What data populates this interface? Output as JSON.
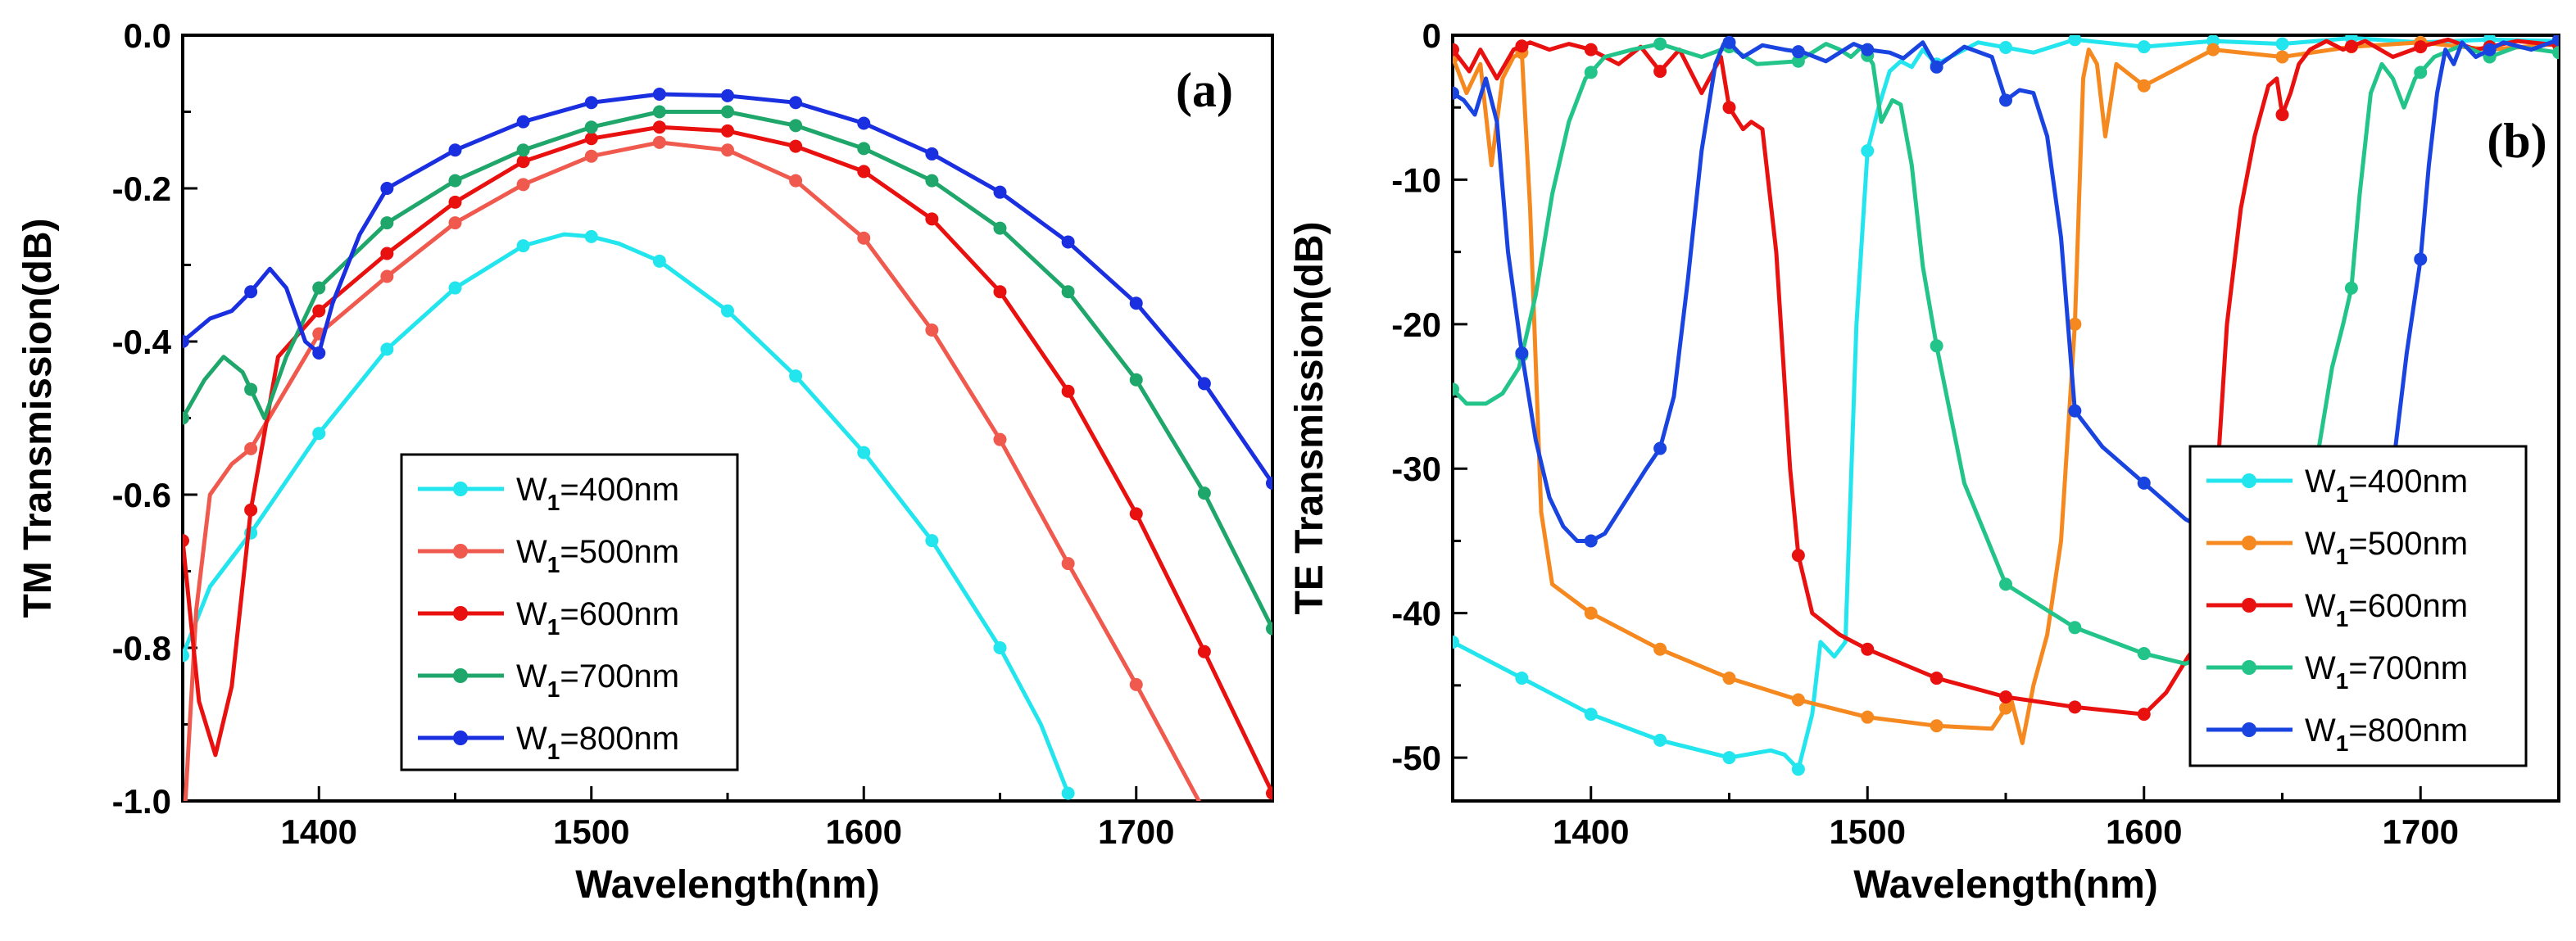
{
  "chart_data": [
    {
      "type": "line",
      "panel_label": "(a)",
      "xlabel": "Wavelength(nm)",
      "ylabel": "TM Transmission(dB)",
      "xlim": [
        1350,
        1750
      ],
      "ylim": [
        -1.0,
        0.0
      ],
      "xticks": [
        1400,
        1500,
        1600,
        1700
      ],
      "yticks": [
        -1.0,
        -0.8,
        -0.6,
        -0.4,
        -0.2,
        0.0
      ],
      "ytick_labels": [
        "-1.0",
        "-0.8",
        "-0.6",
        "-0.4",
        "-0.2",
        "0.0"
      ],
      "legend_position": "bottom-center",
      "series": [
        {
          "name": "W1=400nm",
          "label_main": "W",
          "label_sub": "1",
          "label_rest": "=400nm",
          "color": "#22e5ee",
          "x": [
            1350,
            1360,
            1375,
            1400,
            1425,
            1450,
            1475,
            1490,
            1500,
            1510,
            1525,
            1550,
            1575,
            1600,
            1625,
            1650,
            1665,
            1675
          ],
          "y": [
            -0.81,
            -0.72,
            -0.65,
            -0.52,
            -0.41,
            -0.33,
            -0.275,
            -0.26,
            -0.263,
            -0.272,
            -0.295,
            -0.36,
            -0.445,
            -0.545,
            -0.66,
            -0.8,
            -0.9,
            -0.99
          ]
        },
        {
          "name": "W1=500nm",
          "label_main": "W",
          "label_sub": "1",
          "label_rest": "=500nm",
          "color": "#f05a4e",
          "x": [
            1351,
            1355,
            1360,
            1368,
            1375,
            1390,
            1400,
            1425,
            1450,
            1475,
            1500,
            1525,
            1550,
            1575,
            1600,
            1625,
            1650,
            1675,
            1700,
            1723
          ],
          "y": [
            -1.0,
            -0.75,
            -0.6,
            -0.56,
            -0.54,
            -0.45,
            -0.39,
            -0.315,
            -0.245,
            -0.195,
            -0.158,
            -0.14,
            -0.15,
            -0.19,
            -0.265,
            -0.385,
            -0.528,
            -0.69,
            -0.848,
            -1.0
          ]
        },
        {
          "name": "W1=600nm",
          "label_main": "W",
          "label_sub": "1",
          "label_rest": "=600nm",
          "color": "#e8110f",
          "x": [
            1350,
            1356,
            1362,
            1368,
            1375,
            1385,
            1400,
            1425,
            1450,
            1475,
            1500,
            1525,
            1550,
            1575,
            1600,
            1625,
            1650,
            1675,
            1700,
            1725,
            1750
          ],
          "y": [
            -0.66,
            -0.87,
            -0.94,
            -0.85,
            -0.62,
            -0.42,
            -0.36,
            -0.285,
            -0.218,
            -0.165,
            -0.135,
            -0.12,
            -0.125,
            -0.145,
            -0.178,
            -0.24,
            -0.335,
            -0.465,
            -0.625,
            -0.805,
            -0.99
          ]
        },
        {
          "name": "W1=700nm",
          "label_main": "W",
          "label_sub": "1",
          "label_rest": "=700nm",
          "color": "#1fa66a",
          "x": [
            1350,
            1358,
            1365,
            1372,
            1380,
            1388,
            1400,
            1425,
            1450,
            1475,
            1500,
            1525,
            1550,
            1575,
            1600,
            1625,
            1650,
            1675,
            1700,
            1725,
            1750
          ],
          "y": [
            -0.5,
            -0.45,
            -0.42,
            -0.44,
            -0.5,
            -0.42,
            -0.33,
            -0.245,
            -0.19,
            -0.15,
            -0.12,
            -0.1,
            -0.1,
            -0.118,
            -0.148,
            -0.19,
            -0.252,
            -0.335,
            -0.45,
            -0.598,
            -0.775
          ]
        },
        {
          "name": "W1=800nm",
          "label_main": "W",
          "label_sub": "1",
          "label_rest": "=800nm",
          "color": "#1a2fe0",
          "x": [
            1350,
            1360,
            1368,
            1375,
            1382,
            1388,
            1395,
            1400,
            1405,
            1415,
            1425,
            1450,
            1475,
            1500,
            1525,
            1550,
            1575,
            1600,
            1625,
            1650,
            1675,
            1700,
            1725,
            1750
          ],
          "y": [
            -0.4,
            -0.37,
            -0.36,
            -0.335,
            -0.305,
            -0.33,
            -0.4,
            -0.415,
            -0.35,
            -0.26,
            -0.2,
            -0.15,
            -0.113,
            -0.088,
            -0.077,
            -0.079,
            -0.088,
            -0.115,
            -0.155,
            -0.205,
            -0.27,
            -0.35,
            -0.455,
            -0.585
          ]
        }
      ]
    },
    {
      "type": "line",
      "panel_label": "(b)",
      "xlabel": "Wavelength(nm)",
      "ylabel": "TE Transmission(dB)",
      "xlim": [
        1350,
        1750
      ],
      "ylim": [
        -53,
        0
      ],
      "xticks": [
        1400,
        1500,
        1600,
        1700
      ],
      "yticks": [
        -50,
        -40,
        -30,
        -20,
        -10,
        0
      ],
      "ytick_labels": [
        "-50",
        "-40",
        "-30",
        "-20",
        "-10",
        "0"
      ],
      "legend_position": "bottom-right",
      "series": [
        {
          "name": "W1=400nm",
          "label_main": "W",
          "label_sub": "1",
          "label_rest": "=400nm",
          "color": "#22e5ee",
          "x": [
            1350,
            1375,
            1400,
            1425,
            1450,
            1465,
            1470,
            1475,
            1480,
            1483,
            1488,
            1492,
            1496,
            1500,
            1504,
            1508,
            1512,
            1516,
            1520,
            1525,
            1540,
            1560,
            1575,
            1600,
            1625,
            1650,
            1675,
            1700,
            1725,
            1750
          ],
          "y": [
            -42,
            -44.5,
            -47,
            -48.8,
            -50,
            -49.5,
            -49.8,
            -50.8,
            -47,
            -42,
            -43,
            -42,
            -20,
            -8,
            -5,
            -2.5,
            -1.8,
            -2.2,
            -1,
            -2,
            -0.5,
            -1.2,
            -0.3,
            -0.8,
            -0.4,
            -0.6,
            -0.2,
            -0.5,
            -0.3,
            -0.4
          ]
        },
        {
          "name": "W1=500nm",
          "label_main": "W",
          "label_sub": "1",
          "label_rest": "=500nm",
          "color": "#f5881f",
          "x": [
            1350,
            1355,
            1360,
            1364,
            1368,
            1372,
            1375,
            1378,
            1382,
            1386,
            1400,
            1425,
            1450,
            1475,
            1500,
            1525,
            1545,
            1552,
            1556,
            1560,
            1565,
            1570,
            1575,
            1578,
            1580,
            1583,
            1586,
            1590,
            1600,
            1625,
            1650,
            1675,
            1700,
            1725,
            1750
          ],
          "y": [
            -1.5,
            -4,
            -2,
            -9,
            -3,
            -1.5,
            -1.2,
            -12,
            -33,
            -38,
            -40,
            -42.5,
            -44.5,
            -46,
            -47.2,
            -47.8,
            -48,
            -46,
            -49,
            -45,
            -41.5,
            -35,
            -20,
            -3,
            -1,
            -2,
            -7,
            -2,
            -3.5,
            -1,
            -1.5,
            -0.8,
            -0.5,
            -1,
            -0.6
          ]
        },
        {
          "name": "W1=600nm",
          "label_main": "W",
          "label_sub": "1",
          "label_rest": "=600nm",
          "color": "#e8110f",
          "x": [
            1350,
            1356,
            1360,
            1366,
            1372,
            1378,
            1385,
            1392,
            1400,
            1410,
            1418,
            1425,
            1432,
            1440,
            1447,
            1450,
            1455,
            1458,
            1462,
            1467,
            1472,
            1475,
            1480,
            1490,
            1500,
            1525,
            1550,
            1575,
            1600,
            1608,
            1616,
            1620,
            1625,
            1627,
            1630,
            1635,
            1640,
            1645,
            1648,
            1650,
            1653,
            1656,
            1660,
            1666,
            1672,
            1680,
            1690,
            1700,
            1710,
            1720,
            1735,
            1750
          ],
          "y": [
            -1,
            -2.5,
            -1,
            -3,
            -1,
            -0.5,
            -1,
            -0.6,
            -1,
            -2,
            -0.8,
            -2.5,
            -1,
            -4,
            -1.5,
            -5,
            -6.5,
            -6,
            -6.5,
            -15,
            -30,
            -36,
            -40,
            -41.5,
            -42.5,
            -44.5,
            -45.8,
            -46.5,
            -47,
            -45.5,
            -43,
            -42,
            -40,
            -29,
            -20,
            -12,
            -7,
            -3.5,
            -3,
            -5.5,
            -4,
            -2,
            -1,
            -0.4,
            -1,
            -0.4,
            -1.5,
            -0.8,
            -0.3,
            -1,
            -0.4,
            -0.7
          ]
        },
        {
          "name": "W1=700nm",
          "label_main": "W",
          "label_sub": "1",
          "label_rest": "=700nm",
          "color": "#22c48a",
          "x": [
            1350,
            1355,
            1362,
            1368,
            1374,
            1380,
            1386,
            1392,
            1398,
            1405,
            1415,
            1425,
            1440,
            1450,
            1460,
            1475,
            1485,
            1490,
            1494,
            1498,
            1502,
            1505,
            1509,
            1512,
            1516,
            1520,
            1525,
            1535,
            1550,
            1575,
            1600,
            1615,
            1650,
            1662,
            1668,
            1672,
            1675,
            1678,
            1682,
            1686,
            1690,
            1694,
            1698,
            1705,
            1715,
            1725,
            1735,
            1750
          ],
          "y": [
            -24.5,
            -25.5,
            -25.5,
            -24.8,
            -23,
            -18,
            -11,
            -6,
            -3,
            -1.5,
            -1,
            -0.6,
            -1.5,
            -0.8,
            -2,
            -1.8,
            -0.6,
            -1,
            -1.5,
            -0.8,
            -2,
            -6,
            -4.5,
            -4.8,
            -9,
            -16,
            -21.5,
            -31,
            -38,
            -41,
            -42.8,
            -43.5,
            -41,
            -30,
            -23,
            -20,
            -17.5,
            -11,
            -4,
            -2,
            -3,
            -5,
            -3,
            -1.5,
            -0.7,
            -1.5,
            -0.8,
            -1.2
          ]
        },
        {
          "name": "W1=800nm",
          "label_main": "W",
          "label_sub": "1",
          "label_rest": "=800nm",
          "color": "#1a44e0",
          "x": [
            1350,
            1354,
            1358,
            1362,
            1366,
            1370,
            1375,
            1380,
            1385,
            1390,
            1395,
            1400,
            1405,
            1410,
            1415,
            1420,
            1425,
            1430,
            1435,
            1440,
            1445,
            1448,
            1450,
            1455,
            1462,
            1470,
            1477,
            1485,
            1495,
            1500,
            1508,
            1513,
            1520,
            1525,
            1535,
            1545,
            1550,
            1555,
            1560,
            1565,
            1570,
            1575,
            1585,
            1600,
            1615,
            1620,
            1690,
            1695,
            1700,
            1703,
            1706,
            1709,
            1712,
            1715,
            1720,
            1730,
            1740,
            1750
          ],
          "y": [
            -4,
            -4.5,
            -5.5,
            -3,
            -6,
            -15,
            -22,
            -28,
            -32,
            -34,
            -35,
            -35,
            -34.5,
            -33,
            -31.5,
            -30,
            -28.6,
            -25,
            -17,
            -8,
            -2,
            -0.6,
            -0.5,
            -1.5,
            -0.7,
            -1,
            -1.2,
            -1.8,
            -0.6,
            -1,
            -1.2,
            -1.6,
            -0.5,
            -2.2,
            -0.8,
            -1.5,
            -4.5,
            -3.8,
            -4,
            -7,
            -14,
            -26,
            -28.5,
            -31,
            -33.5,
            -34,
            -30,
            -22,
            -15.5,
            -9,
            -4,
            -1,
            -2,
            -0.5,
            -1.5,
            -0.5,
            -1,
            -0.3
          ]
        }
      ]
    }
  ]
}
